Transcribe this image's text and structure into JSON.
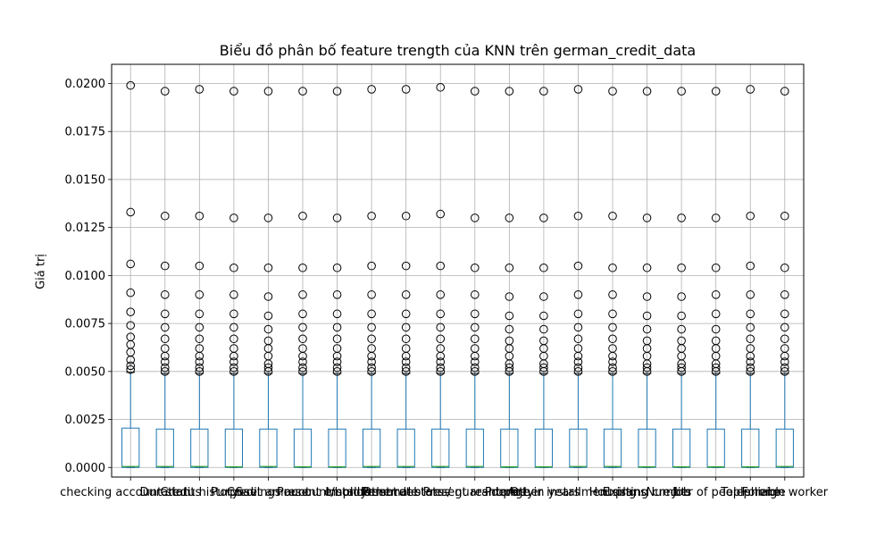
{
  "chart_data": {
    "type": "boxplot",
    "title": "Biểu đồ phân bố feature trengt​h của KNN trên german_credit_data",
    "xlabel": "",
    "ylabel": "Giá trị",
    "ylim": [
      -0.0005,
      0.021
    ],
    "yticks": [
      0.0,
      0.0025,
      0.005,
      0.0075,
      0.01,
      0.0125,
      0.015,
      0.0175,
      0.02
    ],
    "ytick_labels": [
      "0.0000",
      "0.0025",
      "0.0050",
      "0.0075",
      "0.0100",
      "0.0125",
      "0.0150",
      "0.0175",
      "0.0200"
    ],
    "grid": true,
    "box_color": "#1f77b4",
    "median_color": "#2ca02c",
    "categories": [
      "checking account status",
      "Duration",
      "Credit history",
      "Purpose",
      "Credit amount",
      "Savings account/bonds",
      "Present employment",
      "Installment rate",
      "Personal status",
      "Other debtors / guarantors",
      "Present residence",
      "Property",
      "Age in years",
      "Other installment plans",
      "Housing",
      "Existing credits",
      "Job",
      "Number of people liable",
      "Telephone",
      "Foreign worker"
    ],
    "boxes": [
      {
        "q1": 0.0,
        "median": 5e-05,
        "q3": 0.00205,
        "whisker_low": 0.0,
        "whisker_high": 0.00495,
        "outliers": [
          0.0199,
          0.0133,
          0.0106,
          0.0091,
          0.0081,
          0.0074,
          0.0068,
          0.0064,
          0.006,
          0.0056,
          0.0053,
          0.0051
        ]
      },
      {
        "q1": 0.0,
        "median": 5e-05,
        "q3": 0.002,
        "whisker_low": 0.0,
        "whisker_high": 0.0049,
        "outliers": [
          0.0196,
          0.0131,
          0.0105,
          0.009,
          0.008,
          0.0073,
          0.0067,
          0.0062,
          0.0058,
          0.0055,
          0.0052,
          0.005
        ]
      },
      {
        "q1": 0.0,
        "median": 5e-05,
        "q3": 0.002,
        "whisker_low": 0.0,
        "whisker_high": 0.0049,
        "outliers": [
          0.0197,
          0.0131,
          0.0105,
          0.009,
          0.008,
          0.0073,
          0.0067,
          0.0062,
          0.0058,
          0.0055,
          0.0052,
          0.005
        ]
      },
      {
        "q1": 0.0,
        "median": 3e-05,
        "q3": 0.002,
        "whisker_low": 0.0,
        "whisker_high": 0.0049,
        "outliers": [
          0.0196,
          0.013,
          0.0104,
          0.009,
          0.008,
          0.0073,
          0.0067,
          0.0062,
          0.0058,
          0.0055,
          0.0052,
          0.005
        ]
      },
      {
        "q1": 0.0,
        "median": 5e-05,
        "q3": 0.002,
        "whisker_low": 0.0,
        "whisker_high": 0.0049,
        "outliers": [
          0.0196,
          0.013,
          0.0104,
          0.0089,
          0.0079,
          0.0072,
          0.0066,
          0.0062,
          0.0058,
          0.0054,
          0.0052,
          0.005
        ]
      },
      {
        "q1": 0.0,
        "median": 3e-05,
        "q3": 0.002,
        "whisker_low": 0.0,
        "whisker_high": 0.0049,
        "outliers": [
          0.0196,
          0.0131,
          0.0104,
          0.009,
          0.008,
          0.0073,
          0.0067,
          0.0062,
          0.0058,
          0.0055,
          0.0052,
          0.005
        ]
      },
      {
        "q1": 0.0,
        "median": 3e-05,
        "q3": 0.002,
        "whisker_low": 0.0,
        "whisker_high": 0.0049,
        "outliers": [
          0.0196,
          0.013,
          0.0104,
          0.009,
          0.008,
          0.0073,
          0.0067,
          0.0062,
          0.0058,
          0.0055,
          0.0052,
          0.005
        ]
      },
      {
        "q1": 0.0,
        "median": 5e-05,
        "q3": 0.002,
        "whisker_low": 0.0,
        "whisker_high": 0.0049,
        "outliers": [
          0.0197,
          0.0131,
          0.0105,
          0.009,
          0.008,
          0.0073,
          0.0067,
          0.0062,
          0.0058,
          0.0055,
          0.0052,
          0.005
        ]
      },
      {
        "q1": 0.0,
        "median": 5e-05,
        "q3": 0.002,
        "whisker_low": 0.0,
        "whisker_high": 0.0049,
        "outliers": [
          0.0197,
          0.0131,
          0.0105,
          0.009,
          0.008,
          0.0073,
          0.0067,
          0.0062,
          0.0058,
          0.0055,
          0.0052,
          0.005
        ]
      },
      {
        "q1": 0.0,
        "median": 5e-05,
        "q3": 0.002,
        "whisker_low": 0.0,
        "whisker_high": 0.0049,
        "outliers": [
          0.0198,
          0.0132,
          0.0105,
          0.009,
          0.008,
          0.0073,
          0.0067,
          0.0062,
          0.0058,
          0.0055,
          0.0052,
          0.005
        ]
      },
      {
        "q1": 0.0,
        "median": 5e-05,
        "q3": 0.002,
        "whisker_low": 0.0,
        "whisker_high": 0.0049,
        "outliers": [
          0.0196,
          0.013,
          0.0104,
          0.009,
          0.008,
          0.0073,
          0.0067,
          0.0062,
          0.0058,
          0.0055,
          0.0052,
          0.005
        ]
      },
      {
        "q1": 0.0,
        "median": 3e-05,
        "q3": 0.002,
        "whisker_low": 0.0,
        "whisker_high": 0.0049,
        "outliers": [
          0.0196,
          0.013,
          0.0104,
          0.0089,
          0.0079,
          0.0072,
          0.0066,
          0.0062,
          0.0058,
          0.0054,
          0.0052,
          0.005
        ]
      },
      {
        "q1": 0.0,
        "median": 3e-05,
        "q3": 0.002,
        "whisker_low": 0.0,
        "whisker_high": 0.0049,
        "outliers": [
          0.0196,
          0.013,
          0.0104,
          0.0089,
          0.0079,
          0.0072,
          0.0066,
          0.0062,
          0.0058,
          0.0054,
          0.0052,
          0.005
        ]
      },
      {
        "q1": 0.0,
        "median": 5e-05,
        "q3": 0.002,
        "whisker_low": 0.0,
        "whisker_high": 0.0049,
        "outliers": [
          0.0197,
          0.0131,
          0.0105,
          0.009,
          0.008,
          0.0073,
          0.0067,
          0.0062,
          0.0058,
          0.0055,
          0.0052,
          0.005
        ]
      },
      {
        "q1": 0.0,
        "median": 5e-05,
        "q3": 0.002,
        "whisker_low": 0.0,
        "whisker_high": 0.0049,
        "outliers": [
          0.0196,
          0.0131,
          0.0104,
          0.009,
          0.008,
          0.0073,
          0.0067,
          0.0062,
          0.0058,
          0.0055,
          0.0052,
          0.005
        ]
      },
      {
        "q1": 0.0,
        "median": 3e-05,
        "q3": 0.002,
        "whisker_low": 0.0,
        "whisker_high": 0.0049,
        "outliers": [
          0.0196,
          0.013,
          0.0104,
          0.0089,
          0.0079,
          0.0072,
          0.0066,
          0.0062,
          0.0058,
          0.0054,
          0.0052,
          0.005
        ]
      },
      {
        "q1": 0.0,
        "median": 3e-05,
        "q3": 0.002,
        "whisker_low": 0.0,
        "whisker_high": 0.0049,
        "outliers": [
          0.0196,
          0.013,
          0.0104,
          0.0089,
          0.0079,
          0.0072,
          0.0066,
          0.0062,
          0.0058,
          0.0054,
          0.0052,
          0.005
        ]
      },
      {
        "q1": 0.0,
        "median": 3e-05,
        "q3": 0.002,
        "whisker_low": 0.0,
        "whisker_high": 0.0049,
        "outliers": [
          0.0196,
          0.013,
          0.0104,
          0.009,
          0.008,
          0.0072,
          0.0066,
          0.0062,
          0.0058,
          0.0054,
          0.0052,
          0.005
        ]
      },
      {
        "q1": 0.0,
        "median": 3e-05,
        "q3": 0.002,
        "whisker_low": 0.0,
        "whisker_high": 0.0049,
        "outliers": [
          0.0197,
          0.0131,
          0.0105,
          0.009,
          0.008,
          0.0073,
          0.0067,
          0.0062,
          0.0058,
          0.0055,
          0.0052,
          0.005
        ]
      },
      {
        "q1": 0.0,
        "median": 5e-05,
        "q3": 0.002,
        "whisker_low": 0.0,
        "whisker_high": 0.0049,
        "outliers": [
          0.0196,
          0.0131,
          0.0104,
          0.009,
          0.008,
          0.0073,
          0.0067,
          0.0062,
          0.0058,
          0.0055,
          0.0052,
          0.005
        ]
      }
    ]
  }
}
